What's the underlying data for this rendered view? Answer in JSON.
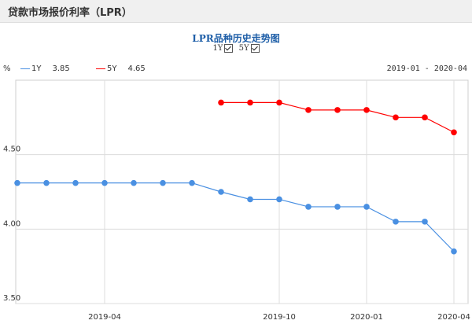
{
  "header": {
    "title": "贷款市场报价利率（LPR）"
  },
  "toggles": [
    {
      "label": "1Y",
      "checked": true
    },
    {
      "label": "5Y",
      "checked": true
    }
  ],
  "legend": {
    "unit": "%",
    "items": [
      {
        "name": "1Y",
        "value": "3.85",
        "color": "#4a90e2"
      },
      {
        "name": "5Y",
        "value": "4.65",
        "color": "#ff0000"
      }
    ],
    "range": "2019-01 - 2020-04"
  },
  "chart_data": {
    "type": "line",
    "title": "LPR品种历史走势图",
    "ylim": [
      3.5,
      5.0
    ],
    "yticks": [
      "4.50",
      "4.00",
      "3.50"
    ],
    "xticks": [
      "2019-04",
      "2019-10",
      "2020-01",
      "2020-04"
    ],
    "x": [
      "2019-01",
      "2019-02",
      "2019-03",
      "2019-04",
      "2019-05",
      "2019-06",
      "2019-07",
      "2019-08",
      "2019-09",
      "2019-10",
      "2019-11",
      "2019-12",
      "2020-01",
      "2020-02",
      "2020-03",
      "2020-04"
    ],
    "series": [
      {
        "name": "1Y",
        "color": "#4a90e2",
        "values": [
          4.31,
          4.31,
          4.31,
          4.31,
          4.31,
          4.31,
          4.31,
          4.25,
          4.2,
          4.2,
          4.15,
          4.15,
          4.15,
          4.05,
          4.05,
          3.85
        ]
      },
      {
        "name": "5Y",
        "color": "#ff0000",
        "values": [
          null,
          null,
          null,
          null,
          null,
          null,
          null,
          4.85,
          4.85,
          4.85,
          4.8,
          4.8,
          4.8,
          4.75,
          4.75,
          4.65
        ]
      }
    ],
    "grid": true,
    "legend_position": "top-left"
  }
}
